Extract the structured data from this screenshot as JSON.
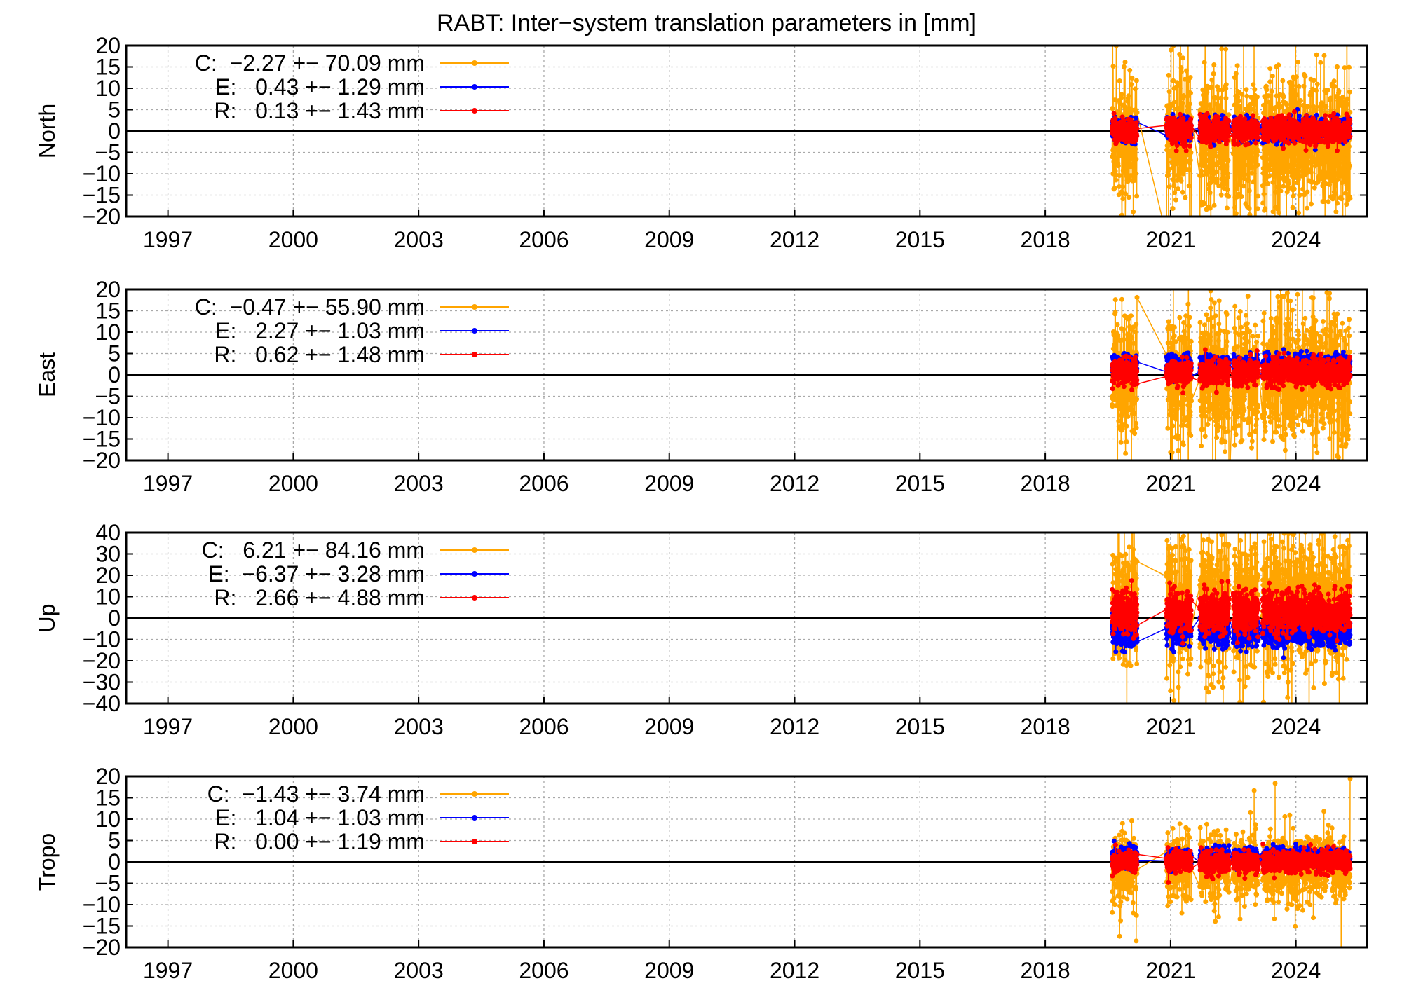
{
  "chart_data": {
    "type": "line",
    "title": "RABT: Inter−system translation parameters in [mm]",
    "xlim": [
      1996.0,
      2025.7
    ],
    "xticks": [
      1997,
      2000,
      2003,
      2006,
      2009,
      2012,
      2015,
      2018,
      2021,
      2024
    ],
    "xtick_labels": [
      "1997",
      "2000",
      "2003",
      "2006",
      "2009",
      "2012",
      "2015",
      "2018",
      "2021",
      "2024"
    ],
    "legend_position": "top-left",
    "series_colors": {
      "C": "#ffa500",
      "E": "#0000ff",
      "R": "#ff0000"
    },
    "data_segments": [
      [
        2019.6,
        2020.2
      ],
      [
        2020.9,
        2021.5
      ],
      [
        2021.7,
        2022.4
      ],
      [
        2022.5,
        2023.1
      ],
      [
        2023.2,
        2025.3
      ]
    ],
    "panels": [
      {
        "ylabel": "North",
        "ylim": [
          -20,
          20
        ],
        "yticks": [
          -20,
          -15,
          -10,
          -5,
          0,
          5,
          10,
          15,
          20
        ],
        "ytick_labels": [
          "−20",
          "−15",
          "−10",
          "−5",
          "0",
          "5",
          "10",
          "15",
          "20"
        ],
        "series": [
          {
            "name": "C",
            "legend": "C:  −2.27 +− 70.09 mm",
            "mean": -2.27,
            "sigma": 70.09,
            "spread": 7.5,
            "seed": 11
          },
          {
            "name": "E",
            "legend": "E:   0.43 +− 1.29 mm",
            "mean": 0.43,
            "sigma": 1.29,
            "spread": 1.3,
            "seed": 12
          },
          {
            "name": "R",
            "legend": "R:   0.13 +− 1.43 mm",
            "mean": 0.13,
            "sigma": 1.43,
            "spread": 1.4,
            "seed": 13
          }
        ]
      },
      {
        "ylabel": "East",
        "ylim": [
          -20,
          20
        ],
        "yticks": [
          -20,
          -15,
          -10,
          -5,
          0,
          5,
          10,
          15,
          20
        ],
        "ytick_labels": [
          "−20",
          "−15",
          "−10",
          "−5",
          "0",
          "5",
          "10",
          "15",
          "20"
        ],
        "series": [
          {
            "name": "C",
            "legend": "C:  −0.47 +− 55.90 mm",
            "mean": -0.47,
            "sigma": 55.9,
            "spread": 7.5,
            "seed": 21
          },
          {
            "name": "E",
            "legend": "E:   2.27 +− 1.03 mm",
            "mean": 2.27,
            "sigma": 1.03,
            "spread": 1.1,
            "seed": 22
          },
          {
            "name": "R",
            "legend": "R:   0.62 +− 1.48 mm",
            "mean": 0.62,
            "sigma": 1.48,
            "spread": 1.5,
            "seed": 23
          }
        ]
      },
      {
        "ylabel": "Up",
        "ylim": [
          -40,
          40
        ],
        "yticks": [
          -40,
          -30,
          -20,
          -10,
          0,
          10,
          20,
          30,
          40
        ],
        "ytick_labels": [
          "−40",
          "−30",
          "−20",
          "−10",
          "0",
          "10",
          "20",
          "30",
          "40"
        ],
        "series": [
          {
            "name": "C",
            "legend": "C:   6.21 +− 84.16 mm",
            "mean": 6.21,
            "sigma": 84.16,
            "spread": 16,
            "seed": 31
          },
          {
            "name": "E",
            "legend": "E:  −6.37 +− 3.28 mm",
            "mean": -6.37,
            "sigma": 3.28,
            "spread": 3.3,
            "seed": 32
          },
          {
            "name": "R",
            "legend": "R:   2.66 +− 4.88 mm",
            "mean": 2.66,
            "sigma": 4.88,
            "spread": 4.9,
            "seed": 33
          }
        ]
      },
      {
        "ylabel": "Tropo",
        "ylim": [
          -20,
          20
        ],
        "yticks": [
          -20,
          -15,
          -10,
          -5,
          0,
          5,
          10,
          15,
          20
        ],
        "ytick_labels": [
          "−20",
          "−15",
          "−10",
          "−5",
          "0",
          "5",
          "10",
          "15",
          "20"
        ],
        "series": [
          {
            "name": "C",
            "legend": "C:  −1.43 +− 3.74 mm",
            "mean": -1.43,
            "sigma": 3.74,
            "spread": 3.7,
            "seed": 41
          },
          {
            "name": "E",
            "legend": "E:   1.04 +− 1.03 mm",
            "mean": 1.04,
            "sigma": 1.03,
            "spread": 1.0,
            "seed": 42
          },
          {
            "name": "R",
            "legend": "R:   0.00 +− 1.19 mm",
            "mean": 0.0,
            "sigma": 1.19,
            "spread": 1.2,
            "seed": 43
          }
        ]
      }
    ]
  }
}
